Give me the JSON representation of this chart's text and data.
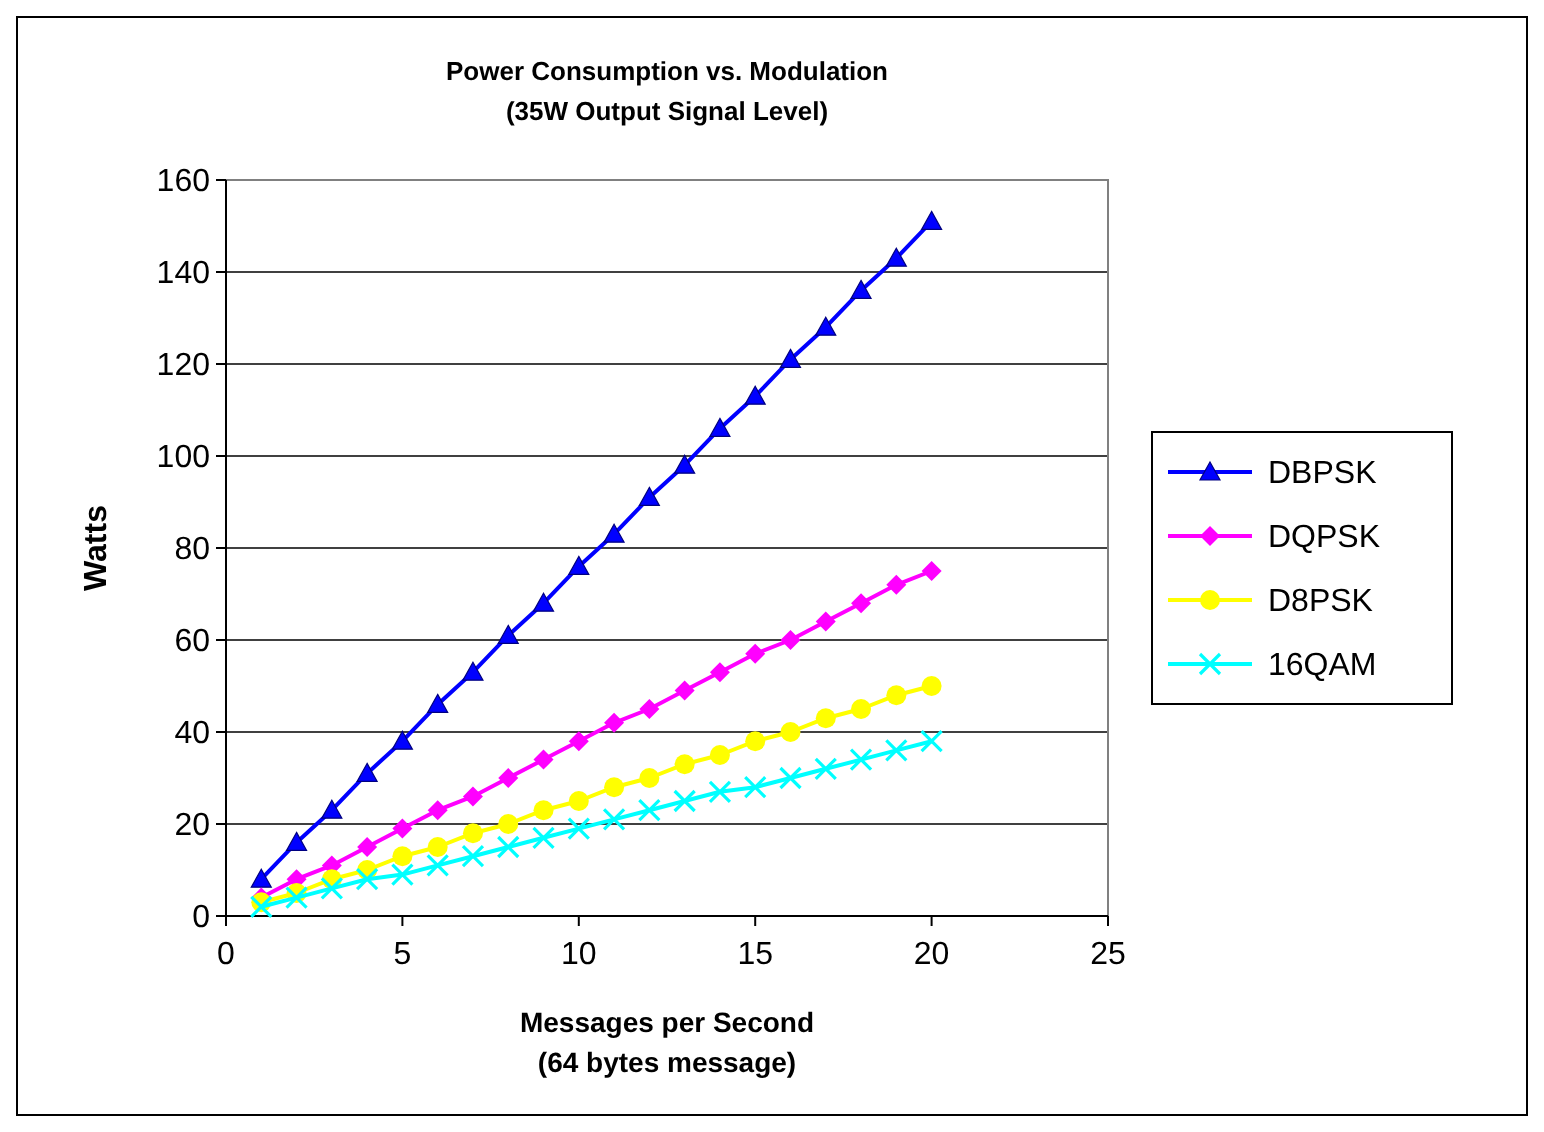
{
  "chart_data": {
    "type": "line",
    "title": "Power Consumption vs. Modulation",
    "subtitle": "(35W Output Signal Level)",
    "xlabel": "Messages per Second",
    "annotations": [
      "(64 bytes message)"
    ],
    "ylabel": "Watts",
    "x": [
      1,
      2,
      3,
      4,
      5,
      6,
      7,
      8,
      9,
      10,
      11,
      12,
      13,
      14,
      15,
      16,
      17,
      18,
      19,
      20
    ],
    "series": [
      {
        "name": "DBPSK",
        "color": "#0000ff",
        "marker": "triangle",
        "values": [
          8,
          16,
          23,
          31,
          38,
          46,
          53,
          61,
          68,
          76,
          83,
          91,
          98,
          106,
          113,
          121,
          128,
          136,
          143,
          151
        ]
      },
      {
        "name": "DQPSK",
        "color": "#ff00ff",
        "marker": "diamond",
        "values": [
          4,
          8,
          11,
          15,
          19,
          23,
          26,
          30,
          34,
          38,
          42,
          45,
          49,
          53,
          57,
          60,
          64,
          68,
          72,
          75
        ]
      },
      {
        "name": "D8PSK",
        "color": "#ffff00",
        "marker": "circle",
        "values": [
          3,
          5,
          8,
          10,
          13,
          15,
          18,
          20,
          23,
          25,
          28,
          30,
          33,
          35,
          38,
          40,
          43,
          45,
          48,
          50
        ]
      },
      {
        "name": "16QAM",
        "color": "#00ffff",
        "marker": "cross",
        "values": [
          2,
          4,
          6,
          8,
          9,
          11,
          13,
          15,
          17,
          19,
          21,
          23,
          25,
          27,
          28,
          30,
          32,
          34,
          36,
          38
        ]
      }
    ],
    "xlim": [
      0,
      25
    ],
    "xticks": [
      0,
      5,
      10,
      15,
      20,
      25
    ],
    "ylim": [
      0,
      160
    ],
    "yticks": [
      0,
      20,
      40,
      60,
      80,
      100,
      120,
      140,
      160
    ],
    "grid": "y",
    "legend": "right"
  }
}
